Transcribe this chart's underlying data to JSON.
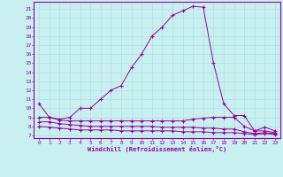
{
  "xlabel": "Windchill (Refroidissement éolien,°C)",
  "background_color": "#c8f0f0",
  "line_color": "#990099",
  "grid_color": "#aadddd",
  "x_ticks": [
    0,
    1,
    2,
    3,
    4,
    5,
    6,
    7,
    8,
    9,
    10,
    11,
    12,
    13,
    14,
    15,
    16,
    17,
    18,
    19,
    20,
    21,
    22,
    23
  ],
  "y_ticks": [
    7,
    8,
    9,
    10,
    11,
    12,
    13,
    14,
    15,
    16,
    17,
    18,
    19,
    20,
    21
  ],
  "ylim": [
    6.7,
    21.8
  ],
  "xlim": [
    -0.5,
    23.5
  ],
  "series1": [
    10.5,
    9.0,
    8.8,
    9.0,
    10.0,
    10.0,
    11.0,
    12.0,
    12.5,
    14.5,
    16.0,
    18.0,
    19.0,
    20.3,
    20.8,
    21.3,
    21.2,
    15.0,
    10.5,
    9.2,
    9.2,
    7.5,
    7.9,
    7.5
  ],
  "series2": [
    9.0,
    9.0,
    8.7,
    8.6,
    8.6,
    8.6,
    8.6,
    8.6,
    8.6,
    8.6,
    8.6,
    8.6,
    8.6,
    8.6,
    8.6,
    8.8,
    8.9,
    9.0,
    9.0,
    9.0,
    8.0,
    7.5,
    7.5,
    7.3
  ],
  "series3": [
    8.5,
    8.5,
    8.3,
    8.2,
    8.1,
    8.0,
    8.0,
    8.0,
    8.0,
    8.0,
    8.0,
    8.0,
    7.9,
    7.9,
    7.9,
    7.9,
    7.8,
    7.8,
    7.7,
    7.7,
    7.4,
    7.2,
    7.3,
    7.2
  ],
  "series4": [
    8.0,
    7.9,
    7.8,
    7.7,
    7.6,
    7.6,
    7.6,
    7.6,
    7.5,
    7.5,
    7.5,
    7.5,
    7.5,
    7.5,
    7.4,
    7.4,
    7.4,
    7.3,
    7.3,
    7.3,
    7.2,
    7.1,
    7.2,
    7.1
  ],
  "tick_fontsize": 4.5,
  "xlabel_fontsize": 5.0,
  "linewidth": 0.7,
  "markersize": 3.0
}
